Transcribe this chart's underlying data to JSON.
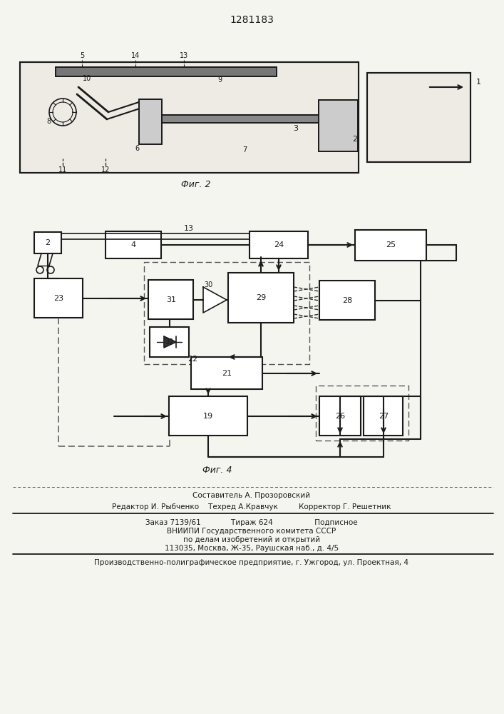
{
  "title": "1281183",
  "fig2_caption": "Фиг. 2",
  "fig4_caption": "Фиг. 4",
  "bg_color": "#f5f5f0",
  "line_color": "#1a1a1a",
  "footer_line1": "Составитель А. Прозоровский",
  "footer_line2": "Редактор И. Рыбченко    Техред А.Кравчук         Корректор Г. Решетник",
  "footer_line3": "Заказ 7139/61             Тираж 624                  Подписное",
  "footer_line4": "ВНИИПИ Государственного комитета СССР",
  "footer_line5": "по делам изобретений и открытий",
  "footer_line6": "113035, Москва, Ж-35, Раушская наб., д. 4/5",
  "footer_line7": "Производственно-полиграфическое предприятие, г. Ужгород, ул. Проектная, 4"
}
